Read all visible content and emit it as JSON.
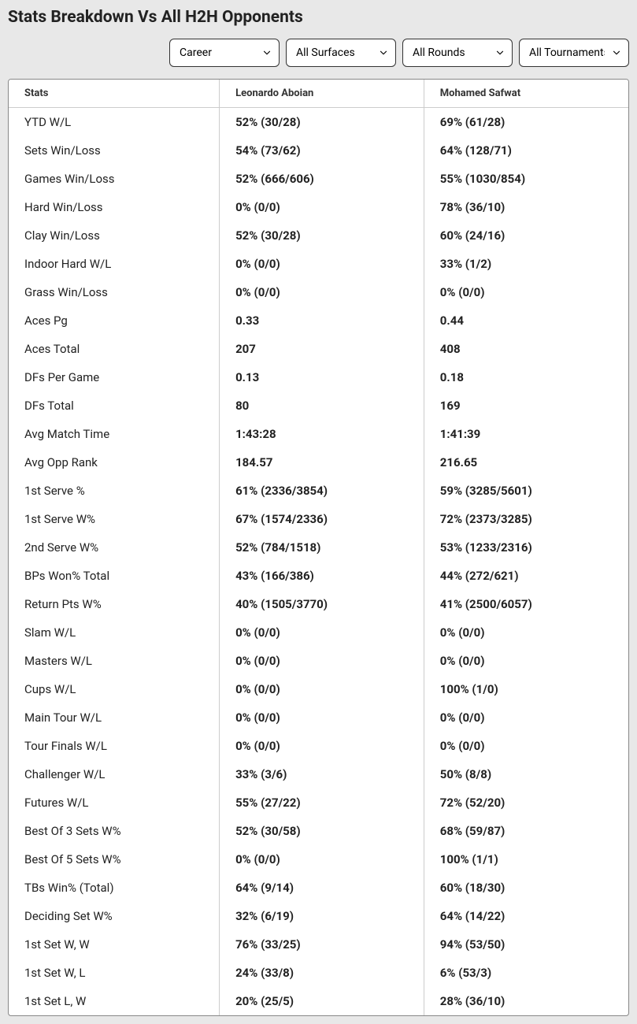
{
  "title": "Stats Breakdown Vs All H2H Opponents",
  "filters": {
    "career": "Career",
    "surfaces": "All Surfaces",
    "rounds": "All Rounds",
    "tournaments": "All Tournaments"
  },
  "columns": {
    "stats": "Stats",
    "player1": "Leonardo Aboian",
    "player2": "Mohamed Safwat"
  },
  "rows": [
    {
      "stat": "YTD W/L",
      "p1": "52% (30/28)",
      "p2": "69% (61/28)"
    },
    {
      "stat": "Sets Win/Loss",
      "p1": "54% (73/62)",
      "p2": "64% (128/71)"
    },
    {
      "stat": "Games Win/Loss",
      "p1": "52% (666/606)",
      "p2": "55% (1030/854)"
    },
    {
      "stat": "Hard Win/Loss",
      "p1": "0% (0/0)",
      "p2": "78% (36/10)"
    },
    {
      "stat": "Clay Win/Loss",
      "p1": "52% (30/28)",
      "p2": "60% (24/16)"
    },
    {
      "stat": "Indoor Hard W/L",
      "p1": "0% (0/0)",
      "p2": "33% (1/2)"
    },
    {
      "stat": "Grass Win/Loss",
      "p1": "0% (0/0)",
      "p2": "0% (0/0)"
    },
    {
      "stat": "Aces Pg",
      "p1": "0.33",
      "p2": "0.44"
    },
    {
      "stat": "Aces Total",
      "p1": "207",
      "p2": "408"
    },
    {
      "stat": "DFs Per Game",
      "p1": "0.13",
      "p2": "0.18"
    },
    {
      "stat": "DFs Total",
      "p1": "80",
      "p2": "169"
    },
    {
      "stat": "Avg Match Time",
      "p1": "1:43:28",
      "p2": "1:41:39"
    },
    {
      "stat": "Avg Opp Rank",
      "p1": "184.57",
      "p2": "216.65"
    },
    {
      "stat": "1st Serve %",
      "p1": "61% (2336/3854)",
      "p2": "59% (3285/5601)"
    },
    {
      "stat": "1st Serve W%",
      "p1": "67% (1574/2336)",
      "p2": "72% (2373/3285)"
    },
    {
      "stat": "2nd Serve W%",
      "p1": "52% (784/1518)",
      "p2": "53% (1233/2316)"
    },
    {
      "stat": "BPs Won% Total",
      "p1": "43% (166/386)",
      "p2": "44% (272/621)"
    },
    {
      "stat": "Return Pts W%",
      "p1": "40% (1505/3770)",
      "p2": "41% (2500/6057)"
    },
    {
      "stat": "Slam W/L",
      "p1": "0% (0/0)",
      "p2": "0% (0/0)"
    },
    {
      "stat": "Masters W/L",
      "p1": "0% (0/0)",
      "p2": "0% (0/0)"
    },
    {
      "stat": "Cups W/L",
      "p1": "0% (0/0)",
      "p2": "100% (1/0)"
    },
    {
      "stat": "Main Tour W/L",
      "p1": "0% (0/0)",
      "p2": "0% (0/0)"
    },
    {
      "stat": "Tour Finals W/L",
      "p1": "0% (0/0)",
      "p2": "0% (0/0)"
    },
    {
      "stat": "Challenger W/L",
      "p1": "33% (3/6)",
      "p2": "50% (8/8)"
    },
    {
      "stat": "Futures W/L",
      "p1": "55% (27/22)",
      "p2": "72% (52/20)"
    },
    {
      "stat": "Best Of 3 Sets W%",
      "p1": "52% (30/58)",
      "p2": "68% (59/87)"
    },
    {
      "stat": "Best Of 5 Sets W%",
      "p1": "0% (0/0)",
      "p2": "100% (1/1)"
    },
    {
      "stat": "TBs Win% (Total)",
      "p1": "64% (9/14)",
      "p2": "60% (18/30)"
    },
    {
      "stat": "Deciding Set W%",
      "p1": "32% (6/19)",
      "p2": "64% (14/22)"
    },
    {
      "stat": "1st Set W, W",
      "p1": "76% (33/25)",
      "p2": "94% (53/50)"
    },
    {
      "stat": "1st Set W, L",
      "p1": "24% (33/8)",
      "p2": "6% (53/3)"
    },
    {
      "stat": "1st Set L, W",
      "p1": "20% (25/5)",
      "p2": "28% (36/10)"
    }
  ]
}
